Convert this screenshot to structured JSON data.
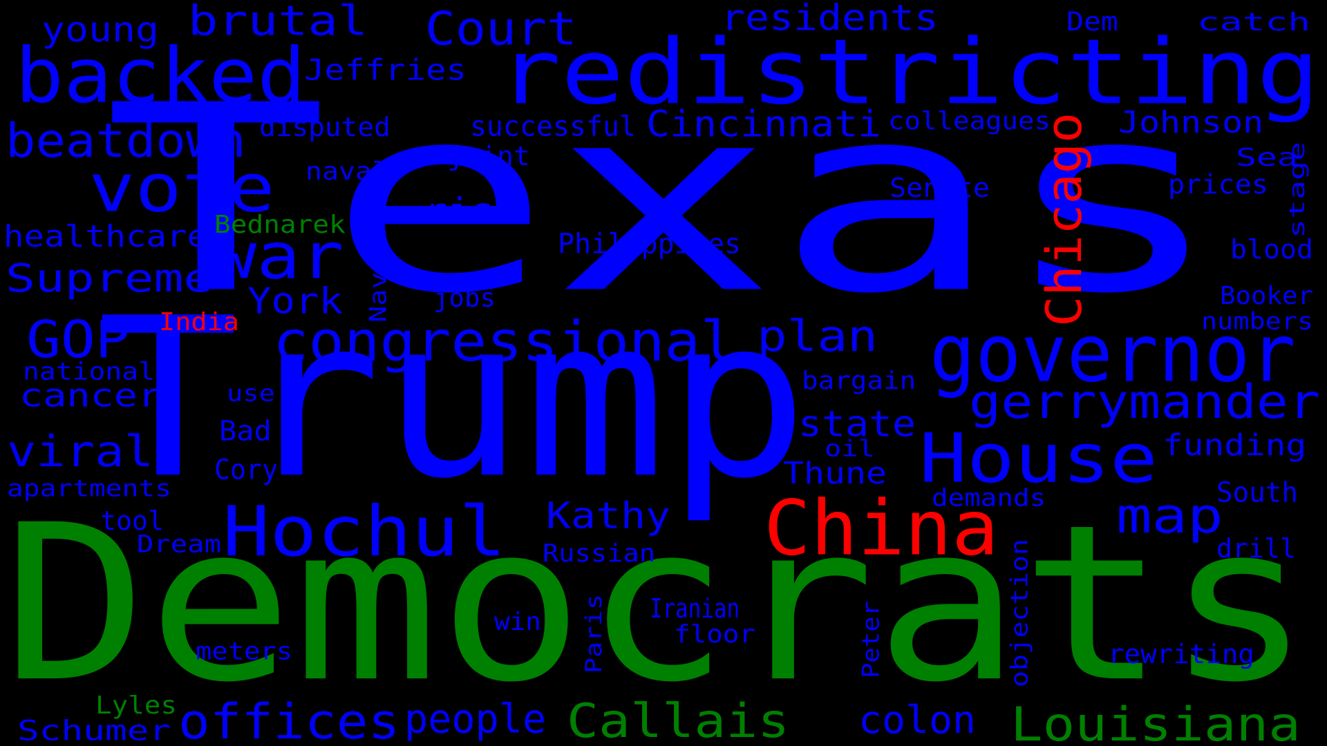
{
  "colors": {
    "background": "#000000",
    "blue": "#0000ff",
    "green": "#008000",
    "red": "#ff0000"
  },
  "words": [
    {
      "text": "Texas",
      "color": "blue"
    },
    {
      "text": "Trump",
      "color": "blue"
    },
    {
      "text": "Democrats",
      "color": "green"
    },
    {
      "text": "redistricting",
      "color": "blue"
    },
    {
      "text": "backed",
      "color": "blue"
    },
    {
      "text": "governor",
      "color": "blue"
    },
    {
      "text": "House",
      "color": "blue"
    },
    {
      "text": "Hochul",
      "color": "blue"
    },
    {
      "text": "China",
      "color": "red"
    },
    {
      "text": "congressional",
      "color": "blue"
    },
    {
      "text": "vote",
      "color": "blue"
    },
    {
      "text": "war",
      "color": "blue"
    },
    {
      "text": "Chicago",
      "color": "red"
    },
    {
      "text": "beatdown",
      "color": "blue"
    },
    {
      "text": "gerrymander",
      "color": "blue"
    },
    {
      "text": "Callais",
      "color": "green"
    },
    {
      "text": "Louisiana",
      "color": "green"
    },
    {
      "text": "offices",
      "color": "blue"
    },
    {
      "text": "map",
      "color": "blue"
    },
    {
      "text": "brutal",
      "color": "blue"
    },
    {
      "text": "Court",
      "color": "blue"
    },
    {
      "text": "plan",
      "color": "blue"
    },
    {
      "text": "Supreme",
      "color": "blue"
    },
    {
      "text": "viral",
      "color": "blue"
    },
    {
      "text": "GOP",
      "color": "blue"
    },
    {
      "text": "Cincinnati",
      "color": "blue"
    },
    {
      "text": "people",
      "color": "blue"
    },
    {
      "text": "colon",
      "color": "blue"
    },
    {
      "text": "York",
      "color": "blue"
    },
    {
      "text": "state",
      "color": "blue"
    },
    {
      "text": "Kathy",
      "color": "blue"
    },
    {
      "text": "residents",
      "color": "blue"
    },
    {
      "text": "risk",
      "color": "blue"
    },
    {
      "text": "Jeffries",
      "color": "blue"
    },
    {
      "text": "Johnson",
      "color": "blue"
    },
    {
      "text": "young",
      "color": "blue"
    },
    {
      "text": "cancer",
      "color": "blue"
    },
    {
      "text": "healthcare",
      "color": "blue"
    },
    {
      "text": "funding",
      "color": "blue"
    },
    {
      "text": "Thune",
      "color": "blue"
    },
    {
      "text": "Schumer",
      "color": "blue"
    },
    {
      "text": "successful",
      "color": "blue"
    },
    {
      "text": "Philippines",
      "color": "blue"
    },
    {
      "text": "colleagues",
      "color": "blue"
    },
    {
      "text": "Senate",
      "color": "blue"
    },
    {
      "text": "prices",
      "color": "blue"
    },
    {
      "text": "blood",
      "color": "blue"
    },
    {
      "text": "Booker",
      "color": "blue"
    },
    {
      "text": "numbers",
      "color": "blue"
    },
    {
      "text": "disputed",
      "color": "blue"
    },
    {
      "text": "catch",
      "color": "blue"
    },
    {
      "text": "Dem",
      "color": "blue"
    },
    {
      "text": "Sea",
      "color": "blue"
    },
    {
      "text": "joint",
      "color": "blue"
    },
    {
      "text": "naval",
      "color": "blue"
    },
    {
      "text": "Bednarek",
      "color": "green"
    },
    {
      "text": "India",
      "color": "red"
    },
    {
      "text": "nationals",
      "color": "blue"
    },
    {
      "text": "apartments",
      "color": "blue"
    },
    {
      "text": "Cory",
      "color": "blue"
    },
    {
      "text": "Bad",
      "color": "blue"
    },
    {
      "text": "use",
      "color": "blue"
    },
    {
      "text": "tool",
      "color": "blue"
    },
    {
      "text": "Dream",
      "color": "blue"
    },
    {
      "text": "meters",
      "color": "blue"
    },
    {
      "text": "Lyles",
      "color": "green"
    },
    {
      "text": "win",
      "color": "blue"
    },
    {
      "text": "Russian",
      "color": "blue"
    },
    {
      "text": "Iranian",
      "color": "blue"
    },
    {
      "text": "floor",
      "color": "blue"
    },
    {
      "text": "bargain",
      "color": "blue"
    },
    {
      "text": "oil",
      "color": "blue"
    },
    {
      "text": "demands",
      "color": "blue"
    },
    {
      "text": "South",
      "color": "blue"
    },
    {
      "text": "drill",
      "color": "blue"
    },
    {
      "text": "rewriting",
      "color": "blue"
    },
    {
      "text": "jobs",
      "color": "blue"
    },
    {
      "text": "Navarro",
      "color": "blue"
    },
    {
      "text": "stage",
      "color": "blue"
    },
    {
      "text": "Paris",
      "color": "blue"
    },
    {
      "text": "Peter",
      "color": "blue"
    },
    {
      "text": "objection",
      "color": "blue"
    }
  ]
}
